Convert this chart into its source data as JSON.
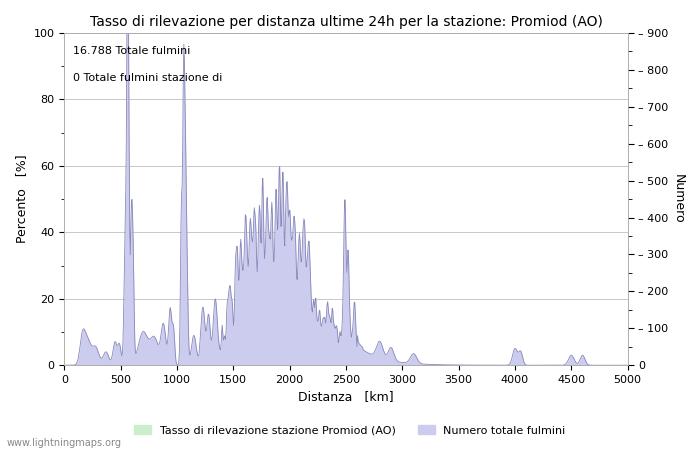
{
  "title": "Tasso di rilevazione per distanza ultime 24h per la stazione: Promiod (AO)",
  "xlabel": "Distanza   [km]",
  "ylabel_left": "Percento   [%]",
  "ylabel_right": "Numero",
  "annotation_line1": "16.788 Totale fulmini",
  "annotation_line2": "0 Totale fulmini stazione di",
  "xlim": [
    0,
    5000
  ],
  "ylim_left": [
    0,
    100
  ],
  "ylim_right": [
    0,
    900
  ],
  "xticks": [
    0,
    500,
    1000,
    1500,
    2000,
    2500,
    3000,
    3500,
    4000,
    4500,
    5000
  ],
  "yticks_left": [
    0,
    20,
    40,
    60,
    80,
    100
  ],
  "yticks_right": [
    0,
    100,
    200,
    300,
    400,
    500,
    600,
    700,
    800,
    900
  ],
  "legend_label_green": "Tasso di rilevazione stazione Promiod (AO)",
  "legend_label_blue": "Numero totale fulmini",
  "watermark": "www.lightningmaps.org",
  "bg_color": "#ffffff",
  "plot_bg_color": "#ffffff",
  "grid_color": "#c8c8c8",
  "fill_blue_color": "#ccccee",
  "fill_green_color": "#cceecc",
  "line_color_blue": "#8888bb",
  "title_fontsize": 10,
  "label_fontsize": 9,
  "tick_fontsize": 8,
  "annotation_fontsize": 8
}
